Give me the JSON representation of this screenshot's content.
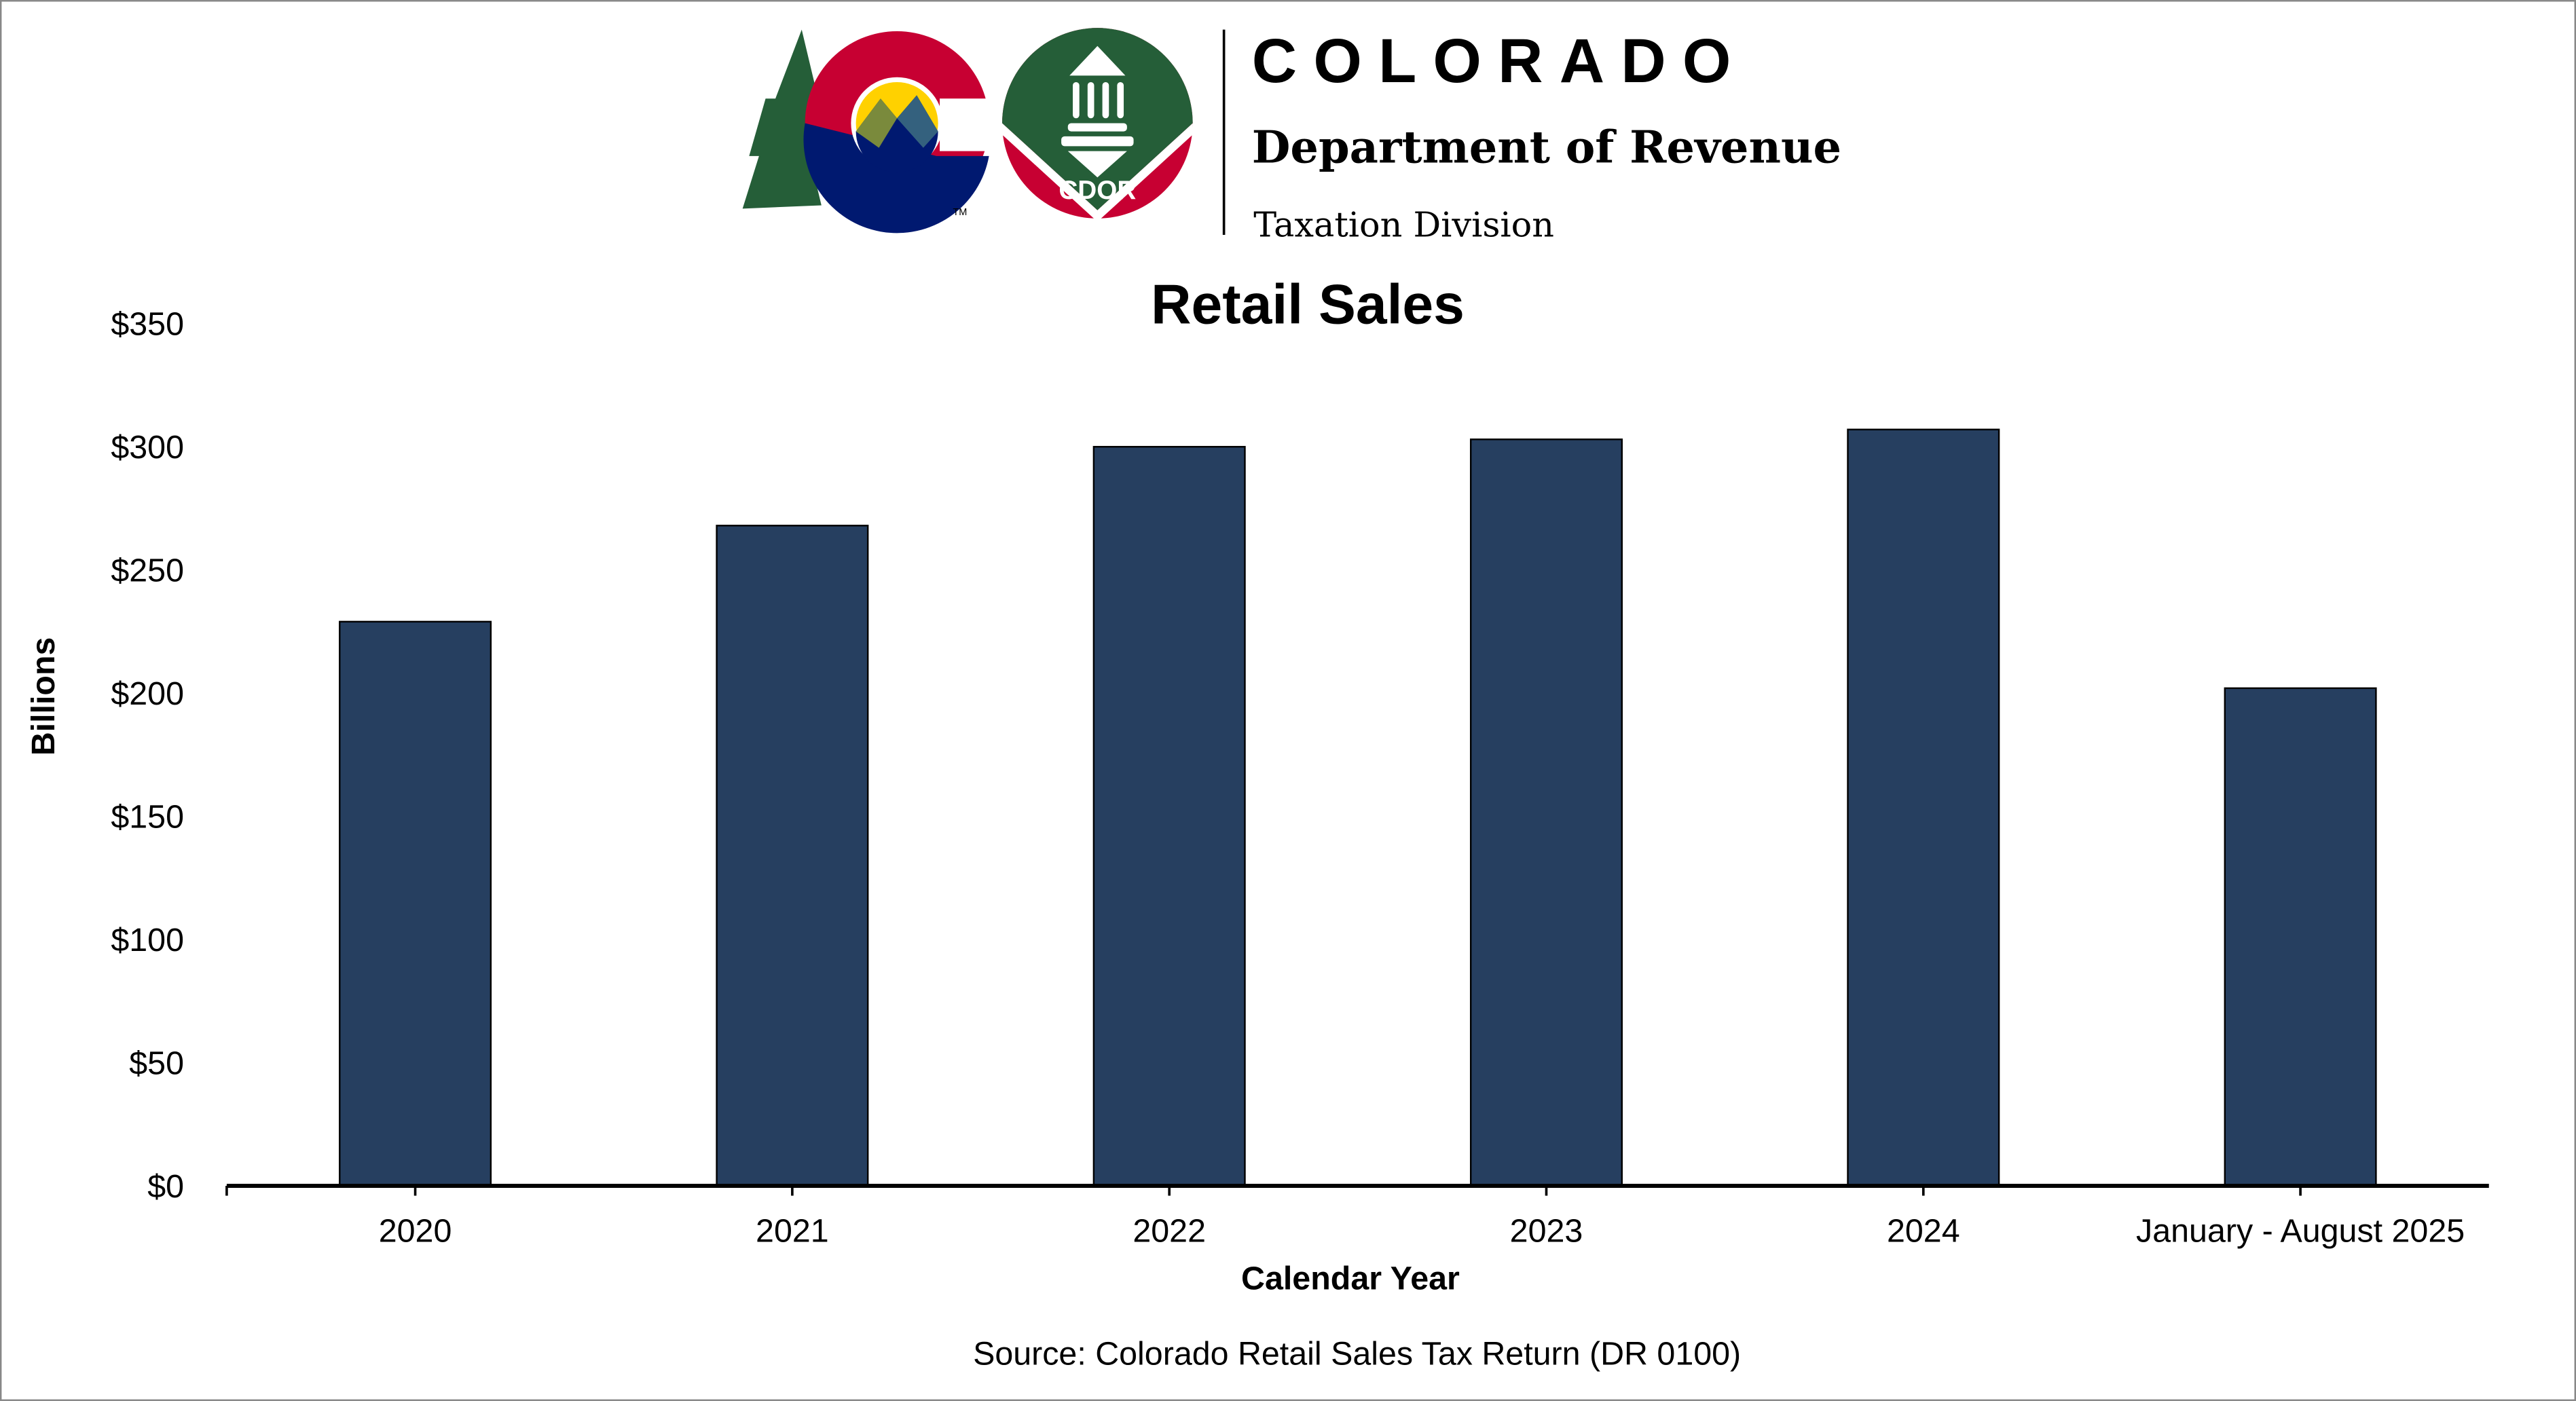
{
  "header": {
    "brand": "COLORADO",
    "department": "Department of Revenue",
    "division": "Taxation Division",
    "logo_badge": "CDOR",
    "trademark": "TM"
  },
  "colors": {
    "bar": "#263f60",
    "green": "#255e38",
    "red": "#c70032",
    "navy": "#001970",
    "gold": "#ffd100"
  },
  "chart_data": {
    "type": "bar",
    "title": "Retail Sales",
    "xlabel": "Calendar Year",
    "ylabel": "Billions",
    "categories": [
      "2020",
      "2021",
      "2022",
      "2023",
      "2024",
      "January - August 2025"
    ],
    "values": [
      229,
      268,
      300,
      303,
      307,
      202
    ],
    "ylim": [
      0,
      350
    ],
    "yticks": [
      0,
      50,
      100,
      150,
      200,
      250,
      300,
      350
    ],
    "ytick_labels": [
      "$0",
      "$50",
      "$100",
      "$150",
      "$200",
      "$250",
      "$300",
      "$350"
    ],
    "grid": false,
    "legend": "none",
    "source": "Source: Colorado Retail Sales Tax Return (DR 0100)"
  }
}
